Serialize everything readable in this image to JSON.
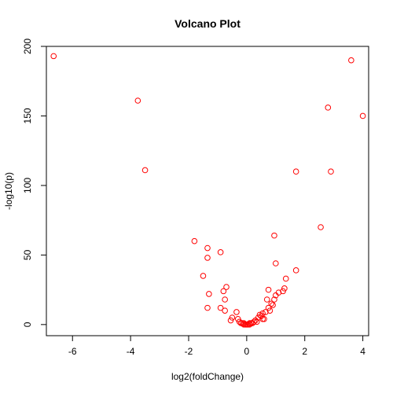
{
  "chart_data": {
    "type": "scatter",
    "title": "Volcano Plot",
    "xlabel": "log2(foldChange)",
    "ylabel": "-log10(p)",
    "xlim": [
      -6.9,
      4.2
    ],
    "ylim": [
      -8,
      200
    ],
    "x_ticks": [
      -6,
      -4,
      -2,
      0,
      2,
      4
    ],
    "y_ticks": [
      0,
      50,
      100,
      150,
      200
    ],
    "grid": false,
    "legend": "none",
    "point_style": "open-circle",
    "point_color": "#ff0000",
    "series": [
      {
        "x": [
          -6.65,
          -3.75,
          -3.5,
          3.6,
          2.8,
          4.0,
          1.7,
          2.9,
          2.55,
          0.95,
          -1.8,
          -1.35,
          -0.9,
          -1.35,
          1.0,
          1.7,
          -1.3,
          1.35,
          -1.5,
          -0.7,
          -0.8,
          0.75,
          1.1,
          1.25,
          1.3,
          1.0,
          0.95,
          0.7,
          0.85,
          0.9,
          -0.75,
          0.75,
          -0.9,
          -1.35,
          0.8,
          0.65,
          0.55,
          -0.75,
          -0.35,
          0.45,
          0.5,
          -0.5,
          0.55,
          0.4,
          -0.55,
          0.6,
          0.3,
          -0.3,
          0.35,
          -0.25,
          0.25,
          -0.2,
          0.2,
          -0.15,
          0.15,
          -0.1,
          0.1,
          -0.05,
          0.05,
          0.0,
          -0.05,
          0.05,
          -0.1,
          0.1,
          0.0
        ],
        "y": [
          193,
          161,
          111,
          190,
          156,
          150,
          110,
          110,
          70,
          64,
          60,
          55,
          52,
          48,
          44,
          39,
          22,
          33,
          35,
          27,
          24,
          25,
          23,
          24,
          26,
          21,
          18,
          18,
          15,
          14,
          18,
          12,
          12,
          12,
          10,
          9,
          8,
          10,
          9,
          7,
          6,
          5,
          4,
          5,
          3,
          4,
          3,
          4,
          2,
          2,
          2,
          1,
          1,
          1,
          1,
          1,
          1,
          0,
          0,
          0,
          0,
          0,
          0,
          0,
          0
        ]
      }
    ]
  }
}
